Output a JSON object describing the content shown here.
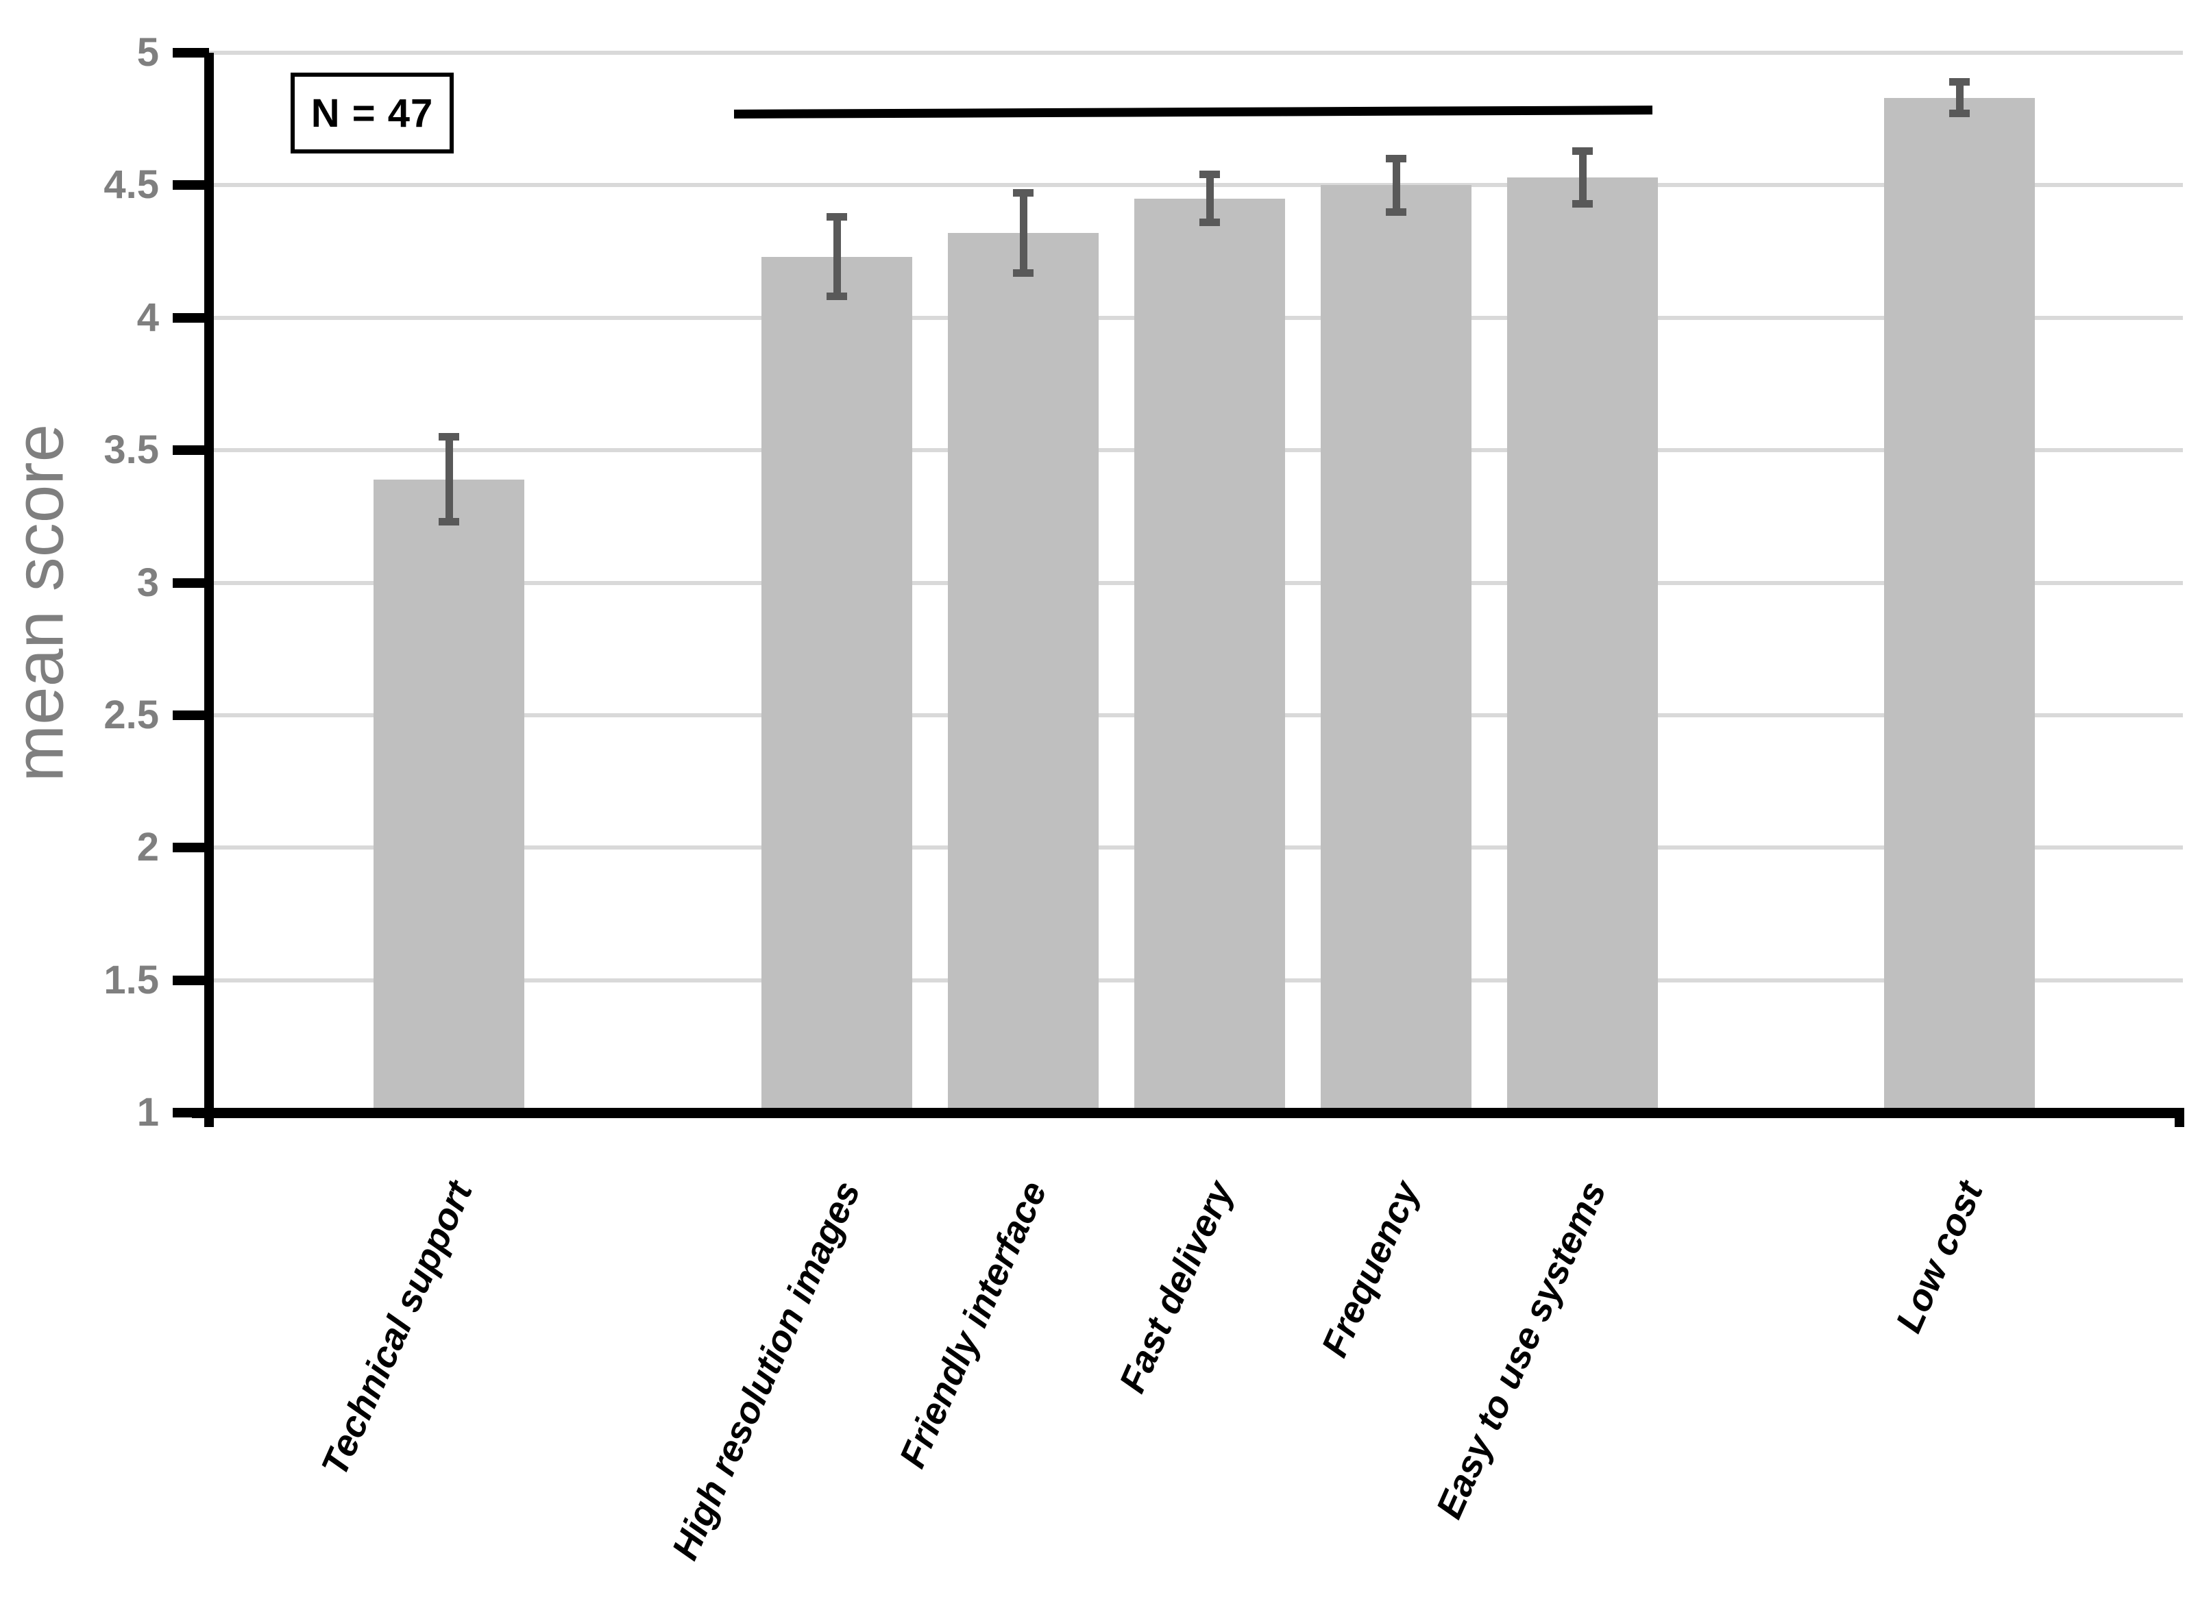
{
  "chart_data": {
    "type": "bar",
    "title": "",
    "xlabel": "",
    "ylabel": "mean score",
    "categories": [
      "Technical support",
      "High resolution images",
      "Friendly interface",
      "Fast delivery",
      "Frequency",
      "Easy to use systems",
      "Low cost"
    ],
    "values": [
      3.39,
      4.23,
      4.32,
      4.45,
      4.5,
      4.53,
      4.83
    ],
    "error_bars": [
      0.16,
      0.15,
      0.15,
      0.09,
      0.1,
      0.1,
      0.06
    ],
    "ylim": [
      1,
      5
    ],
    "yticks": [
      1,
      1.5,
      2,
      2.5,
      3,
      3.5,
      4,
      4.5,
      5
    ],
    "grid": true,
    "legend": false,
    "sample_size_note": "N = 47",
    "significance_line": {
      "from_category": "High resolution images",
      "to_category": "Easy to use systems",
      "y_value": 4.77
    },
    "colors": {
      "background": "#FFFFFF",
      "bar_fill": "#BFBFBF",
      "error_bar": "#595959",
      "gridline": "#D9D9D9",
      "axis": "#000000",
      "tick_label": "#7F7F7F",
      "axis_title": "#7F7F7F",
      "category_label": "#000000",
      "significance_line": "#000000",
      "annotation_border": "#000000",
      "annotation_text": "#000000"
    }
  }
}
